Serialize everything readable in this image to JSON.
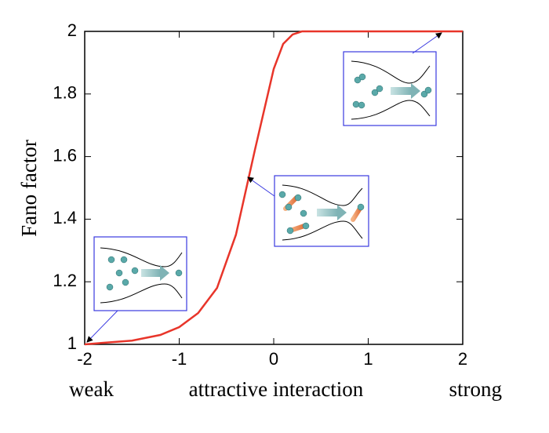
{
  "chart_data": {
    "type": "line",
    "ylabel": "Fano factor",
    "xlabels": [
      "weak",
      "attractive interaction",
      "strong"
    ],
    "x": [
      -2,
      -1.8,
      -1.5,
      -1.2,
      -1,
      -0.8,
      -0.6,
      -0.4,
      -0.2,
      0,
      0.1,
      0.2,
      0.3,
      0.5,
      1,
      2
    ],
    "series": [
      {
        "color": "#e8352a",
        "values": [
          1.0,
          1.005,
          1.012,
          1.03,
          1.055,
          1.1,
          1.18,
          1.35,
          1.62,
          1.88,
          1.96,
          1.99,
          2.0,
          2.0,
          2.0,
          2.0
        ]
      }
    ],
    "xlim": [
      -2,
      2
    ],
    "ylim": [
      1,
      2
    ],
    "xticks": [
      -2,
      -1,
      0,
      1,
      2
    ],
    "yticks": [
      1,
      1.2,
      1.4,
      1.6,
      1.8,
      2
    ]
  }
}
